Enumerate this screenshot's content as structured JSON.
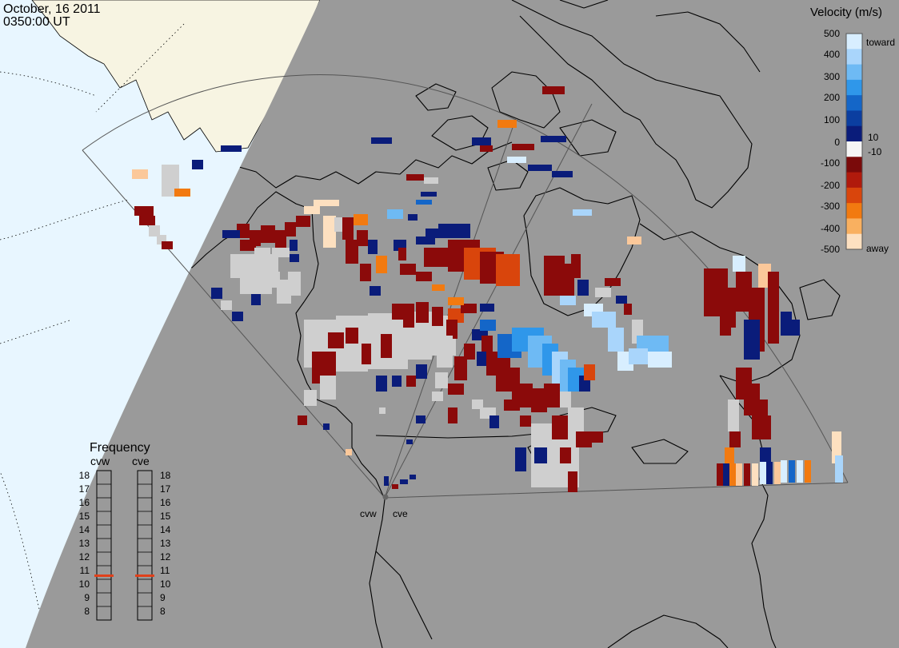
{
  "header": {
    "date": "October, 16 2011",
    "time": "0350:00 UT"
  },
  "velocity_scale": {
    "title": "Velocity (m/s)",
    "ticks": [
      "500",
      "400",
      "300",
      "200",
      "100",
      "10",
      "0",
      "-10",
      "-100",
      "-200",
      "-300",
      "-400",
      "-500"
    ],
    "toward_label": "toward",
    "away_label": "away",
    "colors": [
      "#d8eeff",
      "#a9d5fb",
      "#6ebaf4",
      "#2f97ea",
      "#1466c8",
      "#0b3ea0",
      "#0a1c7a",
      "#f5f5f5",
      "#7a0a0a",
      "#b01a0c",
      "#d9450c",
      "#f27a10",
      "#f9b060",
      "#fde0c0"
    ]
  },
  "frequency_panel": {
    "title": "Frequency",
    "radars": [
      "cvw",
      "cve"
    ],
    "levels": [
      "18",
      "17",
      "16",
      "15",
      "14",
      "13",
      "12",
      "11",
      "10",
      "9",
      "8"
    ],
    "current_level": [
      10.5,
      10.5
    ],
    "marker_color": "#e0401a"
  },
  "map": {
    "radar_sites": [
      "cvw",
      "cve"
    ],
    "colors": {
      "night": "#9a9a9a",
      "day_ocean": "#e8f6ff",
      "day_land": "#f7f4e2",
      "ground_scatter": "#cfcfcf",
      "coast": "#000000"
    }
  }
}
